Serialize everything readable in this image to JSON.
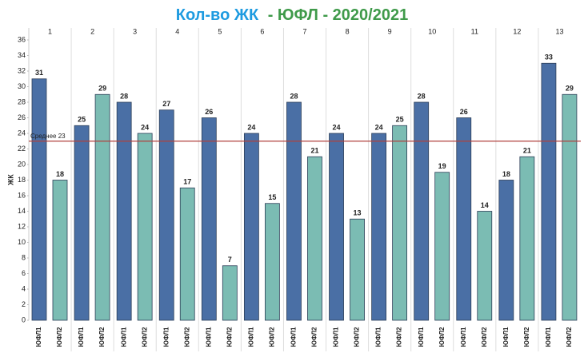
{
  "chart_data": {
    "type": "bar",
    "title_parts": [
      {
        "text": "Кол-во ЖК",
        "color": "#1e9be0"
      },
      {
        "text": "- ЮФЛ - 2020/2021",
        "color": "#3f9a4a"
      }
    ],
    "ylabel": "ЖК",
    "categories": [
      "1",
      "2",
      "3",
      "4",
      "5",
      "6",
      "7",
      "8",
      "9",
      "10",
      "11",
      "12",
      "13"
    ],
    "series": [
      {
        "name": "ЮФЛ1",
        "color": "#4a6fa5",
        "values": [
          31,
          25,
          28,
          27,
          26,
          24,
          28,
          24,
          24,
          28,
          26,
          18,
          33
        ]
      },
      {
        "name": "ЮФЛ2",
        "color": "#7bbcb3",
        "values": [
          18,
          29,
          24,
          17,
          7,
          15,
          21,
          13,
          25,
          19,
          14,
          21,
          29
        ]
      }
    ],
    "average": {
      "value": 23,
      "label": "Среднее 23",
      "color": "#b0413e"
    },
    "ylim": [
      0,
      36
    ],
    "yticks": [
      0,
      2,
      4,
      6,
      8,
      10,
      12,
      14,
      16,
      18,
      20,
      22,
      24,
      26,
      28,
      30,
      32,
      34,
      36
    ]
  }
}
